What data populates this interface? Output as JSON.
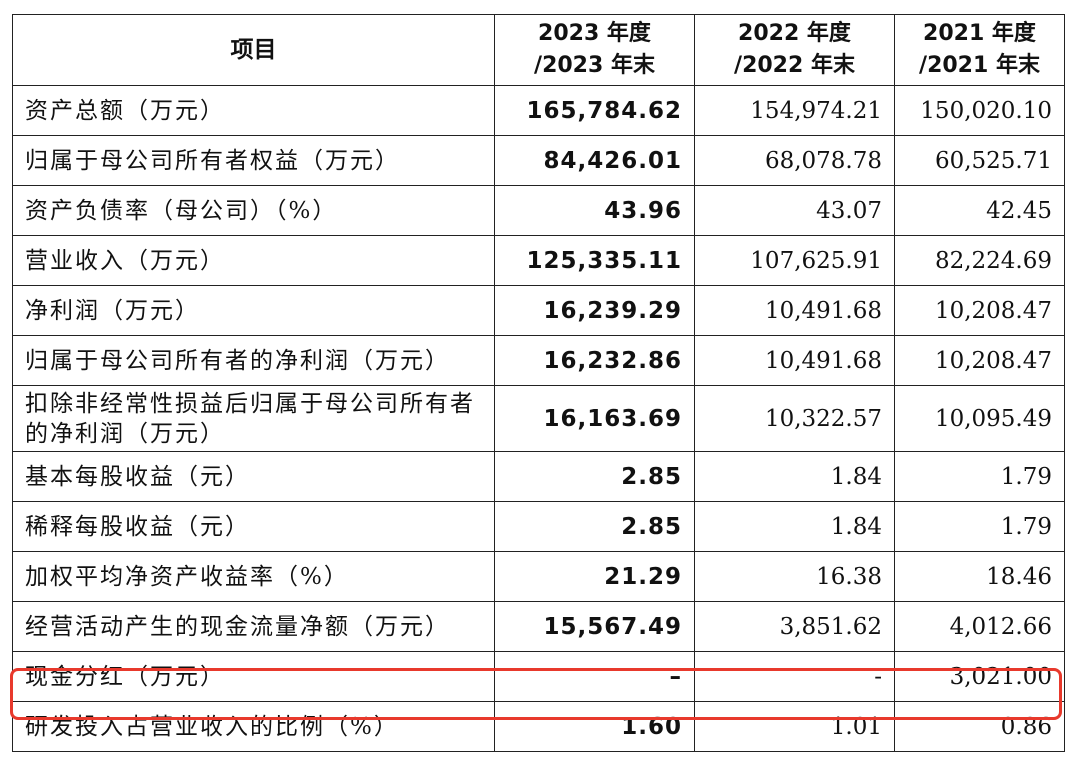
{
  "header": {
    "item": "项目",
    "col2023_line1": "2023 年度",
    "col2023_line2": "/2023 年末",
    "col2022_line1": "2022 年度",
    "col2022_line2": "/2022 年末",
    "col2021_line1": "2021 年度",
    "col2021_line2": "/2021 年末"
  },
  "rows": [
    {
      "label": "资产总额（万元）",
      "v2023": "165,784.62",
      "v2022": "154,974.21",
      "v2021": "150,020.10"
    },
    {
      "label": "归属于母公司所有者权益（万元）",
      "v2023": "84,426.01",
      "v2022": "68,078.78",
      "v2021": "60,525.71"
    },
    {
      "label": "资产负债率（母公司）（%）",
      "v2023": "43.96",
      "v2022": "43.07",
      "v2021": "42.45"
    },
    {
      "label": "营业收入（万元）",
      "v2023": "125,335.11",
      "v2022": "107,625.91",
      "v2021": "82,224.69"
    },
    {
      "label": "净利润（万元）",
      "v2023": "16,239.29",
      "v2022": "10,491.68",
      "v2021": "10,208.47"
    },
    {
      "label": "归属于母公司所有者的净利润（万元）",
      "v2023": "16,232.86",
      "v2022": "10,491.68",
      "v2021": "10,208.47"
    },
    {
      "label": "扣除非经常性损益后归属于母公司所有者的净利润（万元）",
      "v2023": "16,163.69",
      "v2022": "10,322.57",
      "v2021": "10,095.49"
    },
    {
      "label": "基本每股收益（元）",
      "v2023": "2.85",
      "v2022": "1.84",
      "v2021": "1.79"
    },
    {
      "label": "稀释每股收益（元）",
      "v2023": "2.85",
      "v2022": "1.84",
      "v2021": "1.79"
    },
    {
      "label": "加权平均净资产收益率（%）",
      "v2023": "21.29",
      "v2022": "16.38",
      "v2021": "18.46"
    },
    {
      "label": "经营活动产生的现金流量净额（万元）",
      "v2023": "15,567.49",
      "v2022": "3,851.62",
      "v2021": "4,012.66"
    },
    {
      "label": "现金分红（万元）",
      "v2023": "–",
      "v2022": "-",
      "v2021": "3,021.00"
    },
    {
      "label": "研发投入占营业收入的比例（%）",
      "v2023": "1.60",
      "v2022": "1.01",
      "v2021": "0.86"
    }
  ],
  "highlight": {
    "row_label": "现金分红（万元）",
    "color": "#e8392c"
  }
}
